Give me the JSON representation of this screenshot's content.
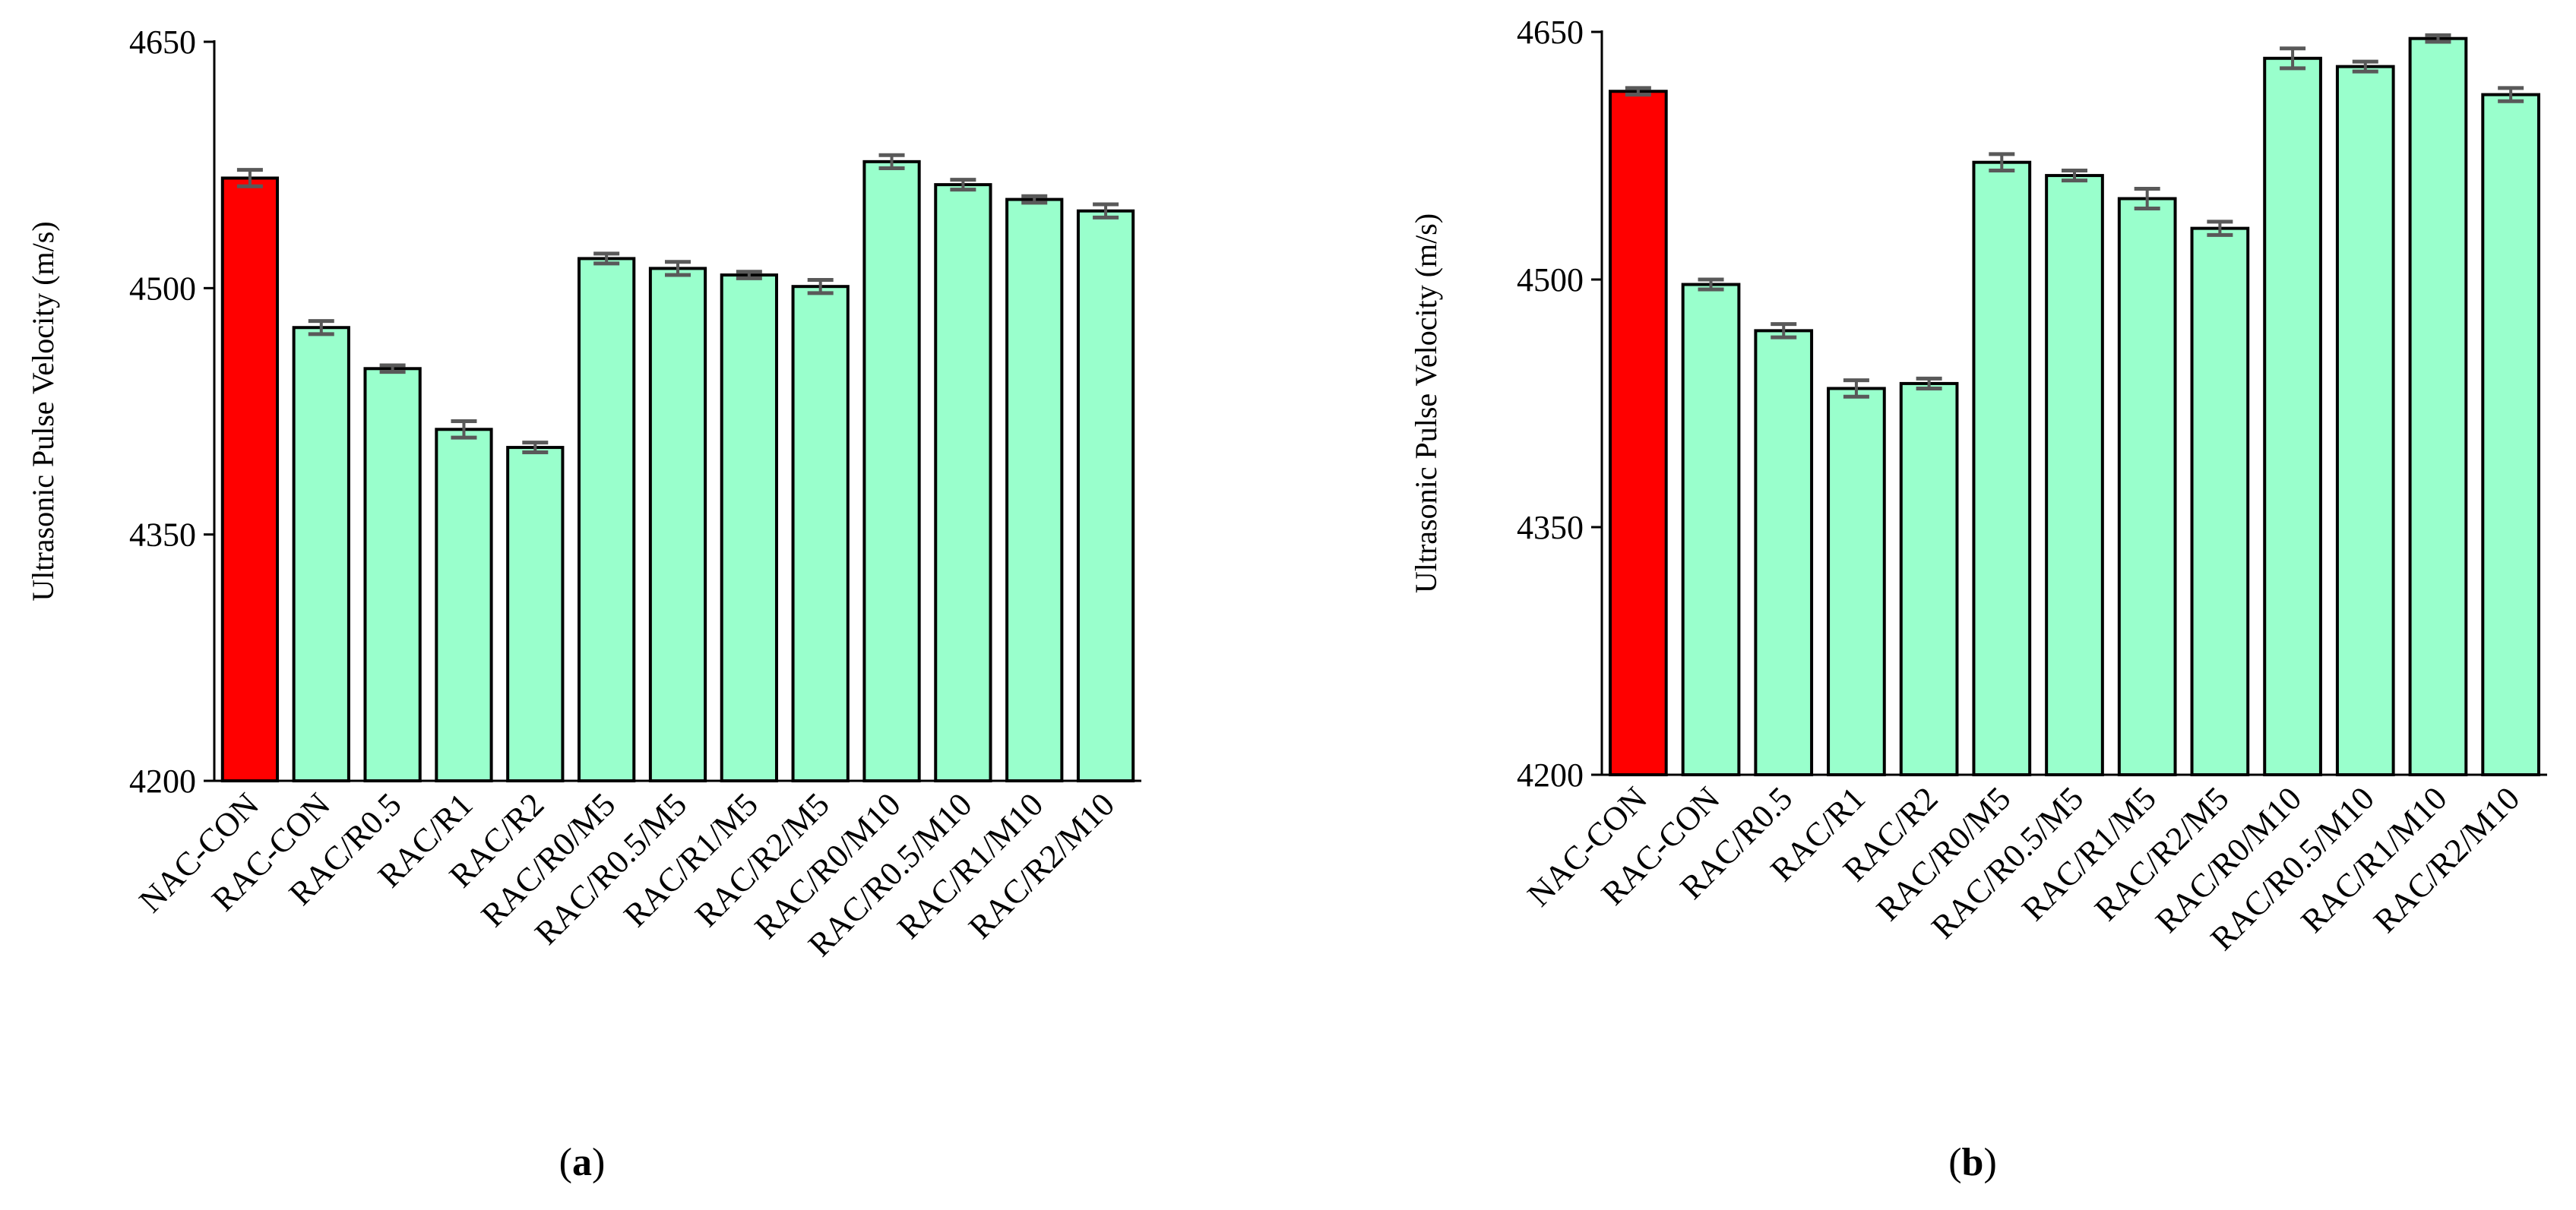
{
  "colors": {
    "reference_bar": "#ff0000",
    "bar": "#99ffcc",
    "bar_outline": "#000000",
    "error_bar": "#595959",
    "axis": "#000000"
  },
  "chart_data": [
    {
      "type": "bar",
      "panel_label": "a",
      "panel_open": "(",
      "panel_close": ")",
      "title": "",
      "xlabel": "",
      "ylabel": "Ultrasonic Pulse Velocity (m/s)",
      "ylim": [
        4200,
        4650
      ],
      "yticks": [
        4200,
        4350,
        4500,
        4650
      ],
      "grid": false,
      "categories": [
        "NAC-CON",
        "RAC-CON",
        "RAC/R0.5",
        "RAC/R1",
        "RAC/R2",
        "RAC/R0/M5",
        "RAC/R0.5/M5",
        "RAC/R1/M5",
        "RAC/R2/M5",
        "RAC/R0/M10",
        "RAC/R0.5/M10",
        "RAC/R1/M10",
        "RAC/R2/M10"
      ],
      "values": [
        4567,
        4476,
        4451,
        4414,
        4403,
        4518,
        4512,
        4508,
        4501,
        4577,
        4563,
        4554,
        4547
      ],
      "errors": [
        5,
        4,
        2,
        5,
        3,
        3,
        4,
        2,
        4,
        4,
        3,
        2,
        4
      ],
      "highlight_index": 0
    },
    {
      "type": "bar",
      "panel_label": "b",
      "panel_open": "(",
      "panel_close": ")",
      "title": "",
      "xlabel": "",
      "ylabel": "Ultrasonic Pulse Velocity (m/s)",
      "ylim": [
        4200,
        4650
      ],
      "yticks": [
        4200,
        4350,
        4500,
        4650
      ],
      "grid": false,
      "categories": [
        "NAC-CON",
        "RAC-CON",
        "RAC/R0.5",
        "RAC/R1",
        "RAC/R2",
        "RAC/R0/M5",
        "RAC/R0.5/M5",
        "RAC/R1/M5",
        "RAC/R2/M5",
        "RAC/R0/M10",
        "RAC/R0.5/M10",
        "RAC/R1/M10",
        "RAC/R2/M10"
      ],
      "values": [
        4614,
        4497,
        4469,
        4434,
        4437,
        4571,
        4563,
        4549,
        4531,
        4634,
        4629,
        4646,
        4612
      ],
      "errors": [
        2,
        3,
        4,
        5,
        3,
        5,
        3,
        6,
        4,
        6,
        3,
        2,
        4
      ],
      "highlight_index": 0
    }
  ]
}
